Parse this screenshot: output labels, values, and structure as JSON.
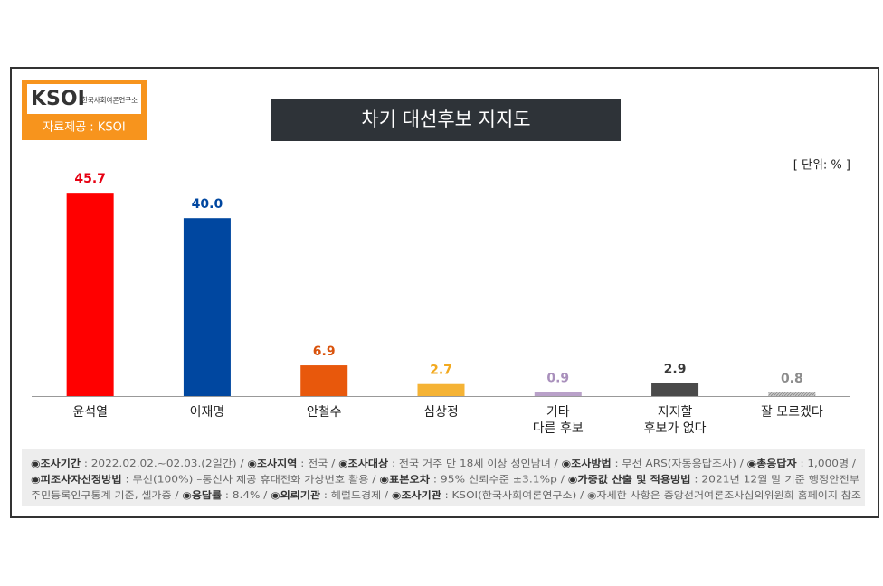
{
  "chart_data": {
    "type": "bar",
    "title": "차기 대선후보 지지도",
    "logo": {
      "mark": "KSOI",
      "org": "한국사회여론연구소",
      "source": "자료제공 : KSOI"
    },
    "unit": "[ 단위: % ]",
    "categories": [
      [
        "윤석열"
      ],
      [
        "이재명"
      ],
      [
        "안철수"
      ],
      [
        "심상정"
      ],
      [
        "기타",
        "다른 후보"
      ],
      [
        "지지할",
        "후보가 없다"
      ],
      [
        "잘 모르겠다"
      ]
    ],
    "values": [
      45.7,
      40.0,
      6.9,
      2.7,
      0.9,
      2.9,
      0.8
    ],
    "value_labels": [
      "45.7",
      "40.0",
      "6.9",
      "2.7",
      "0.9",
      "2.9",
      "0.8"
    ],
    "colors": [
      "#ff0000",
      "#0047a0",
      "#e8580c",
      "#f5b335",
      "#b9a1c9",
      "#4a4a4a",
      "#b0b0b0"
    ],
    "label_colors": [
      "#e60012",
      "#0047a0",
      "#d9530c",
      "#f2a91f",
      "#a990bc",
      "#3a3a3a",
      "#8c8c8c"
    ],
    "footnote": [
      [
        {
          "text": "◉조사기간",
          "bold": true
        },
        {
          "text": " : 2022.02.02.~02.03.(2일간)  / ",
          "bold": false
        },
        {
          "text": "◉조사지역",
          "bold": true
        },
        {
          "text": " : 전국 / ",
          "bold": false
        },
        {
          "text": "◉조사대상",
          "bold": true
        },
        {
          "text": " : 전국 거주 만 18세 이상 성인남녀 / ",
          "bold": false
        },
        {
          "text": "◉조사방법",
          "bold": true
        },
        {
          "text": " : 무선 ARS(자동응답조사) / ",
          "bold": false
        },
        {
          "text": "◉총응답자",
          "bold": true
        },
        {
          "text": " : 1,000명 /",
          "bold": false
        }
      ],
      [
        {
          "text": "◉피조사자선정방법",
          "bold": true
        },
        {
          "text": " : 무선(100%) –통신사 제공 휴대전화 가상번호 활용 / ",
          "bold": false
        },
        {
          "text": "◉표본오차",
          "bold": true
        },
        {
          "text": " : 95% 신뢰수준 ±3.1%p / ",
          "bold": false
        },
        {
          "text": "◉가중값 산출 및 적용방법",
          "bold": true
        },
        {
          "text": " : 2021년 12월 말 기준 행정안전부",
          "bold": false
        }
      ],
      [
        {
          "text": "주민등록인구통계 기준, 셀가중 / ",
          "bold": false
        },
        {
          "text": "◉응답률",
          "bold": true
        },
        {
          "text": " : 8.4% / ",
          "bold": false
        },
        {
          "text": "◉의뢰기관",
          "bold": true
        },
        {
          "text": " : 헤럴드경제 / ",
          "bold": false
        },
        {
          "text": "◉조사기관",
          "bold": true
        },
        {
          "text": " : KSOI(한국사회여론연구소) / ◉자세한 사항은 중앙선거여론조사심의위원회 홈페이지 참조",
          "bold": false
        }
      ]
    ]
  }
}
